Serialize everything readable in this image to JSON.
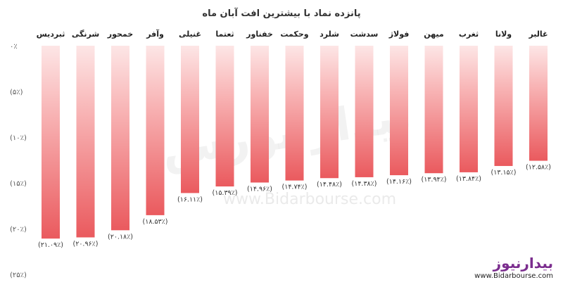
{
  "chart_data": {
    "type": "bar",
    "title": "پانزده نماد با بیشترین افت آبان ماه",
    "categories": [
      "غالبر",
      "ولانا",
      "ثغرب",
      "میهن",
      "فولاژ",
      "سدشت",
      "شلرد",
      "وحکمت",
      "خفناور",
      "ثعتما",
      "غنیلی",
      "وآفر",
      "خمحور",
      "شرنگی",
      "ثبردیس"
    ],
    "values": [
      -12.58,
      -13.15,
      -13.84,
      -13.94,
      -14.16,
      -14.38,
      -14.48,
      -14.74,
      -14.96,
      -15.39,
      -16.11,
      -18.53,
      -20.18,
      -20.96,
      -21.09
    ],
    "data_labels": [
      "(۱۲.۵۸٪)",
      "(۱۳.۱۵٪)",
      "(۱۳.۸۴٪)",
      "(۱۳.۹۴٪)",
      "(۱۴.۱۶٪)",
      "(۱۴.۳۸٪)",
      "(۱۴.۴۸٪)",
      "(۱۴.۷۴٪)",
      "(۱۴.۹۶٪)",
      "(۱۵.۳۹٪)",
      "(۱۶.۱۱٪)",
      "(۱۸.۵۳٪)",
      "(۲۰.۱۸٪)",
      "(۲۰.۹۶٪)",
      "(۲۱.۰۹٪)"
    ],
    "y_ticks": [
      0,
      -5,
      -10,
      -15,
      -20,
      -25
    ],
    "y_tick_labels": [
      "۰٪",
      "(۵٪)",
      "(۱۰٪)",
      "(۱۵٪)",
      "(۲۰٪)",
      "(۲۵٪)"
    ],
    "ylim": [
      -25,
      0
    ],
    "xlabel": "",
    "ylabel": "",
    "grid": false,
    "colors": {
      "bar_top": "#fde6e6",
      "bar_bottom": "#ea5a5e"
    }
  },
  "watermark": {
    "brand": "بیدار بورس",
    "url": "www.Bidarbourse.com"
  },
  "logo": {
    "brand": "بیدارنیوز",
    "url": "www.Bidarbourse.com"
  }
}
